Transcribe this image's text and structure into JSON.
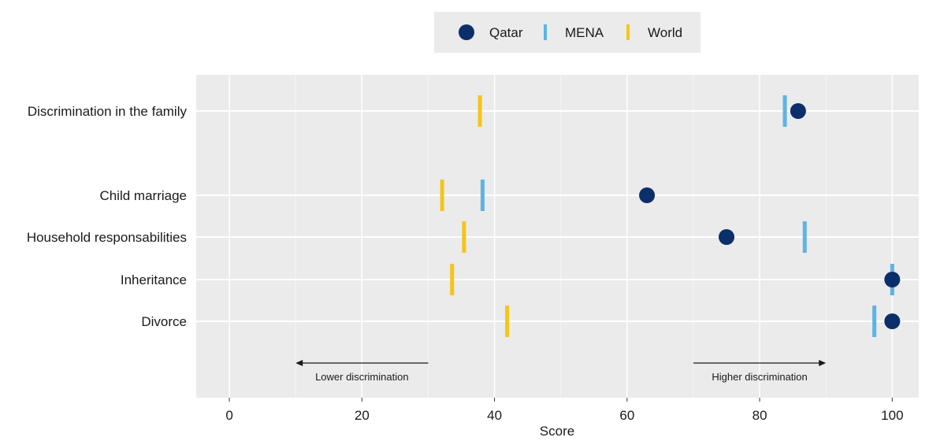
{
  "chart_data": {
    "type": "scatter",
    "xlabel": "Score",
    "xlim": [
      -5,
      104
    ],
    "x_ticks": [
      "0",
      "20",
      "40",
      "60",
      "80",
      "100"
    ],
    "grid": true,
    "legend_position": "top-center",
    "categories": [
      "Discrimination in the family",
      "Child marriage",
      "Household responsabilities",
      "Inheritance",
      "Divorce"
    ],
    "series": [
      {
        "name": "Qatar",
        "marker": "circle",
        "color": "#0b2f6b",
        "values": [
          85.8,
          63.0,
          75.0,
          100.0,
          100.0
        ]
      },
      {
        "name": "MENA",
        "marker": "vertical-bar",
        "color": "#5bb4e5",
        "values": [
          83.8,
          38.2,
          86.8,
          100.0,
          97.3
        ]
      },
      {
        "name": "World",
        "marker": "vertical-bar",
        "color": "#f5c518",
        "values": [
          37.8,
          32.1,
          35.4,
          33.6,
          41.9
        ]
      }
    ],
    "annotations": [
      {
        "text": "Lower discrimination",
        "arrow_from": 30,
        "arrow_to": 10
      },
      {
        "text": "Higher discrimination",
        "arrow_from": 70,
        "arrow_to": 90
      }
    ]
  }
}
